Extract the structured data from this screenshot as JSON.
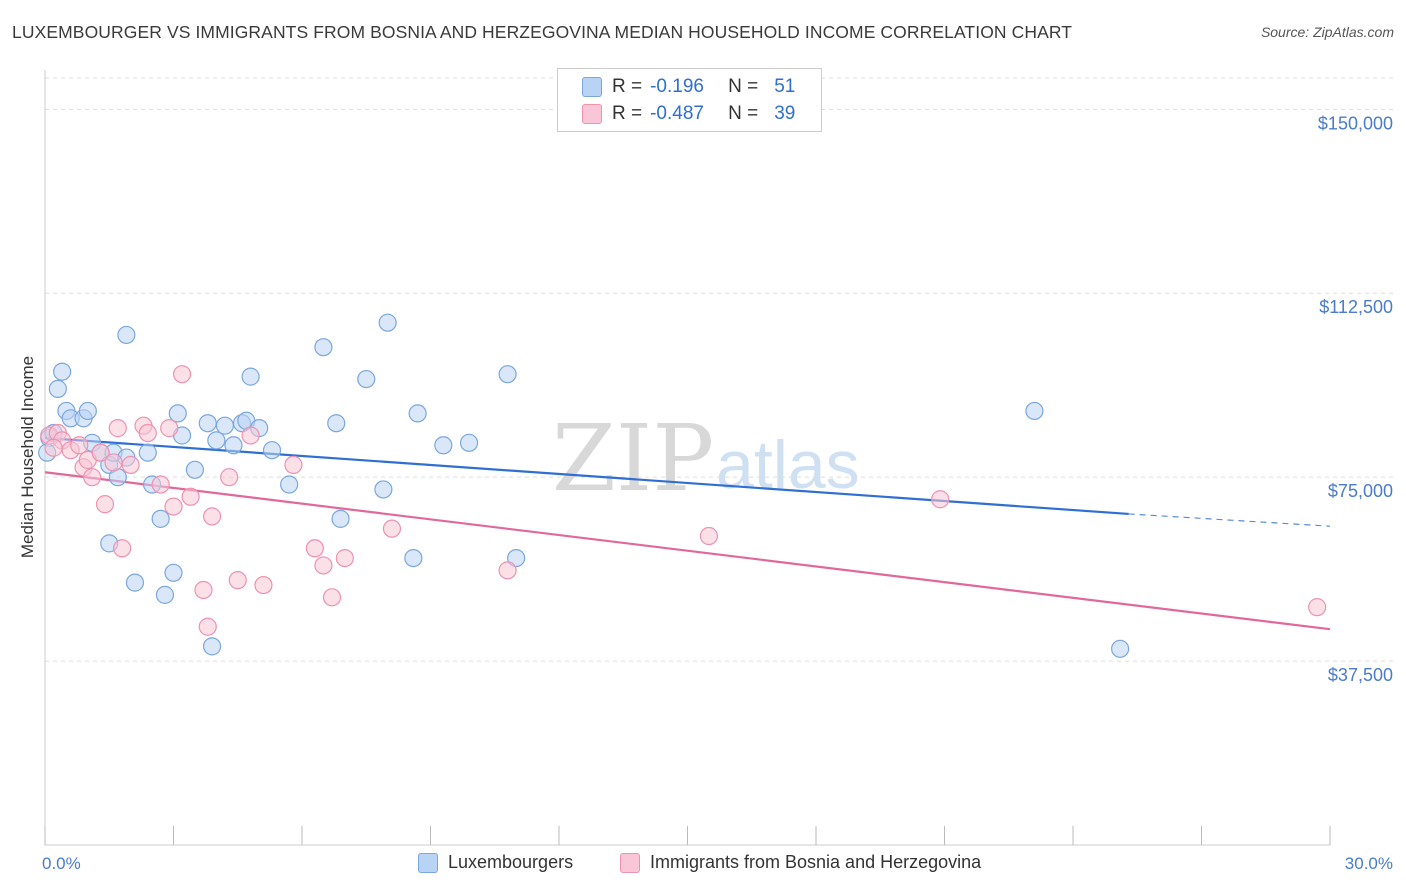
{
  "header": {
    "title": "LUXEMBOURGER VS IMMIGRANTS FROM BOSNIA AND HERZEGOVINA MEDIAN HOUSEHOLD INCOME CORRELATION CHART",
    "source": "Source: ZipAtlas.com"
  },
  "stats": {
    "row1": {
      "r_label": "R =",
      "r_value": "-0.196",
      "n_label": "N =",
      "n_value": "51"
    },
    "row2": {
      "r_label": "R =",
      "r_value": "-0.487",
      "n_label": "N =",
      "n_value": "39"
    }
  },
  "watermark": {
    "zip": "ZIP",
    "atlas": "atlas"
  },
  "colors": {
    "blue_fill": "#b9d3f4",
    "blue_stroke": "#7aa7e0",
    "blue_line": "#2f6fd1",
    "pink_fill": "#f8c6d6",
    "pink_stroke": "#ee92b0",
    "pink_line": "#e0689a",
    "grid": "#dddddd",
    "axis_text": "#4a7cc9"
  },
  "chart_data": {
    "type": "scatter",
    "title": "LUXEMBOURGER VS IMMIGRANTS FROM BOSNIA AND HERZEGOVINA MEDIAN HOUSEHOLD INCOME CORRELATION CHART",
    "xlabel": "",
    "ylabel": "Median Household Income",
    "xlim": [
      0,
      30
    ],
    "ylim": [
      0,
      157000
    ],
    "x_tick_labels": [
      "0.0%",
      "30.0%"
    ],
    "y_ticks": [
      37500,
      75000,
      112500,
      150000
    ],
    "y_tick_labels": [
      "$37,500",
      "$75,000",
      "$112,500",
      "$150,000"
    ],
    "grid": "horizontal dashed",
    "legend_position": "bottom",
    "series": [
      {
        "name": "Luxembourgers",
        "color": "blue",
        "r": -0.196,
        "n": 51,
        "points": [
          [
            0.1,
            83000
          ],
          [
            0.2,
            84000
          ],
          [
            0.3,
            93000
          ],
          [
            0.4,
            96500
          ],
          [
            0.5,
            88500
          ],
          [
            0.6,
            87000
          ],
          [
            0.9,
            87000
          ],
          [
            1.0,
            88500
          ],
          [
            1.1,
            82000
          ],
          [
            1.3,
            80000
          ],
          [
            1.5,
            77500
          ],
          [
            1.6,
            80000
          ],
          [
            1.7,
            75000
          ],
          [
            1.5,
            61500
          ],
          [
            1.9,
            79000
          ],
          [
            1.9,
            104000
          ],
          [
            2.1,
            53500
          ],
          [
            2.4,
            80000
          ],
          [
            2.5,
            73500
          ],
          [
            2.7,
            66500
          ],
          [
            2.8,
            51000
          ],
          [
            3.0,
            55500
          ],
          [
            3.1,
            88000
          ],
          [
            3.2,
            83500
          ],
          [
            3.5,
            76500
          ],
          [
            3.8,
            86000
          ],
          [
            3.9,
            40500
          ],
          [
            4.0,
            82500
          ],
          [
            4.2,
            85500
          ],
          [
            4.4,
            81500
          ],
          [
            4.6,
            86000
          ],
          [
            4.7,
            86500
          ],
          [
            4.8,
            95500
          ],
          [
            5.0,
            85000
          ],
          [
            5.3,
            80500
          ],
          [
            5.7,
            73500
          ],
          [
            6.5,
            101500
          ],
          [
            6.8,
            86000
          ],
          [
            6.9,
            66500
          ],
          [
            7.5,
            95000
          ],
          [
            7.9,
            72500
          ],
          [
            8.0,
            106500
          ],
          [
            8.6,
            58500
          ],
          [
            8.7,
            88000
          ],
          [
            9.3,
            81500
          ],
          [
            9.9,
            82000
          ],
          [
            10.8,
            96000
          ],
          [
            11.0,
            58500
          ],
          [
            23.1,
            88500
          ],
          [
            25.1,
            40000
          ],
          [
            0.05,
            80000
          ]
        ]
      },
      {
        "name": "Immigrants from Bosnia and Herzegovina",
        "color": "pink",
        "r": -0.487,
        "n": 39,
        "points": [
          [
            0.1,
            83500
          ],
          [
            0.3,
            84000
          ],
          [
            0.4,
            82500
          ],
          [
            0.6,
            80500
          ],
          [
            0.8,
            81500
          ],
          [
            0.9,
            77000
          ],
          [
            1.0,
            78500
          ],
          [
            1.1,
            75000
          ],
          [
            1.3,
            80000
          ],
          [
            1.4,
            69500
          ],
          [
            1.7,
            85000
          ],
          [
            1.8,
            60500
          ],
          [
            2.0,
            77500
          ],
          [
            2.3,
            85500
          ],
          [
            2.4,
            84000
          ],
          [
            2.7,
            73500
          ],
          [
            2.9,
            85000
          ],
          [
            3.0,
            69000
          ],
          [
            3.2,
            96000
          ],
          [
            3.4,
            71000
          ],
          [
            3.7,
            52000
          ],
          [
            3.8,
            44500
          ],
          [
            3.9,
            67000
          ],
          [
            4.3,
            75000
          ],
          [
            4.5,
            54000
          ],
          [
            4.8,
            83500
          ],
          [
            5.1,
            53000
          ],
          [
            5.8,
            77500
          ],
          [
            6.3,
            60500
          ],
          [
            6.5,
            57000
          ],
          [
            6.7,
            50500
          ],
          [
            7.0,
            58500
          ],
          [
            8.1,
            64500
          ],
          [
            10.8,
            56000
          ],
          [
            15.5,
            63000
          ],
          [
            20.9,
            70500
          ],
          [
            29.7,
            48500
          ],
          [
            0.2,
            81000
          ],
          [
            1.6,
            78000
          ]
        ]
      }
    ],
    "trend_lines": [
      {
        "series": "Luxembourgers",
        "x": [
          0,
          25.3
        ],
        "y": [
          83000,
          67500
        ],
        "dashed_extension_to": [
          30,
          65000
        ]
      },
      {
        "series": "Immigrants from Bosnia and Herzegovina",
        "x": [
          0,
          30
        ],
        "y": [
          76000,
          44000
        ]
      }
    ]
  },
  "legend": {
    "items": [
      {
        "label": "Luxembourgers"
      },
      {
        "label": "Immigrants from Bosnia and Herzegovina"
      }
    ]
  }
}
